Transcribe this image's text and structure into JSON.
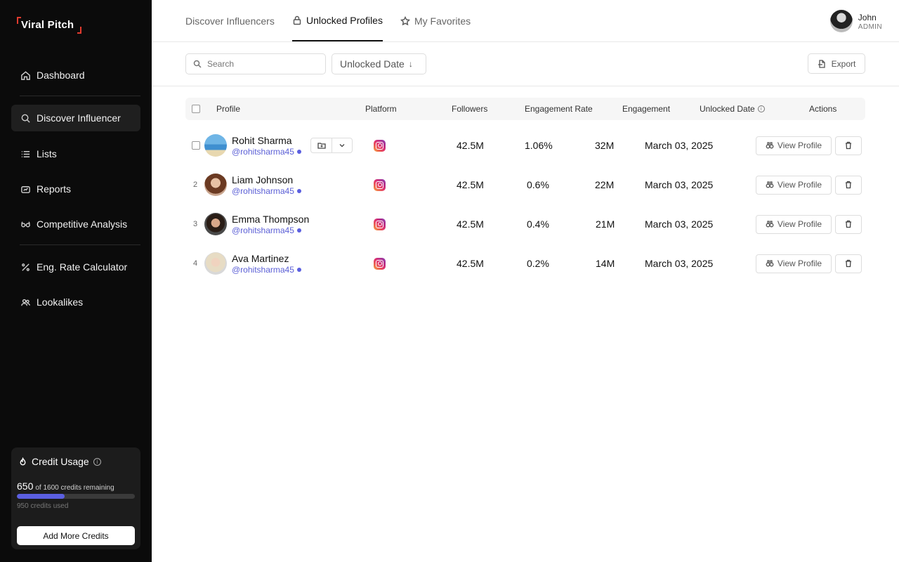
{
  "brand": {
    "name": "Viral Pitch",
    "accent": "#e23b2e"
  },
  "sidebar": {
    "items": [
      {
        "label": "Dashboard",
        "icon": "home-icon"
      },
      {
        "label": "Discover Influencer",
        "icon": "search-icon",
        "active": true
      },
      {
        "label": "Lists",
        "icon": "list-icon"
      },
      {
        "label": "Reports",
        "icon": "reports-icon"
      },
      {
        "label": "Competitive Analysis",
        "icon": "glasses-icon"
      },
      {
        "label": "Eng. Rate Calculator",
        "icon": "percent-icon"
      },
      {
        "label": "Lookalikes",
        "icon": "users-icon"
      }
    ],
    "credits": {
      "title": "Credit Usage",
      "remaining": "650",
      "remaining_suffix": "of 1600 credits remaining",
      "used": "950 credits used",
      "remaining_fraction": 0.40625,
      "bar_color": "#5b5fe0",
      "button": "Add More Credits"
    }
  },
  "tabs": [
    {
      "label": "Discover Influencers",
      "active": false
    },
    {
      "label": "Unlocked Profiles",
      "active": true
    },
    {
      "label": "My Favorites",
      "active": false
    }
  ],
  "user": {
    "name": "John",
    "role": "ADMIN"
  },
  "filters": {
    "search_placeholder": "Search",
    "sort_label": "Unlocked Date",
    "sort_arrow": "↓",
    "export_label": "Export"
  },
  "table": {
    "headers": {
      "profile": "Profile",
      "platform": "Platform",
      "followers": "Followers",
      "engagement_rate": "Engagement Rate",
      "engagement": "Engagement",
      "unlocked_date": "Unlocked Date",
      "actions": "Actions"
    },
    "view_label": "View Profile",
    "rows": [
      {
        "index": "",
        "name": "Rohit Sharma",
        "handle": "@rohitsharma45",
        "followers": "42.5M",
        "engagement_rate": "1.06%",
        "engagement": "32M",
        "unlocked_date": "March 03, 2025"
      },
      {
        "index": "2",
        "name": "Liam Johnson",
        "handle": "@rohitsharma45",
        "followers": "42.5M",
        "engagement_rate": "0.6%",
        "engagement": "22M",
        "unlocked_date": "March 03, 2025"
      },
      {
        "index": "3",
        "name": "Emma Thompson",
        "handle": "@rohitsharma45",
        "followers": "42.5M",
        "engagement_rate": "0.4%",
        "engagement": "21M",
        "unlocked_date": "March 03, 2025"
      },
      {
        "index": "4",
        "name": "Ava Martinez",
        "handle": "@rohitsharma45",
        "followers": "42.5M",
        "engagement_rate": "0.2%",
        "engagement": "14M",
        "unlocked_date": "March 03, 2025"
      }
    ]
  }
}
